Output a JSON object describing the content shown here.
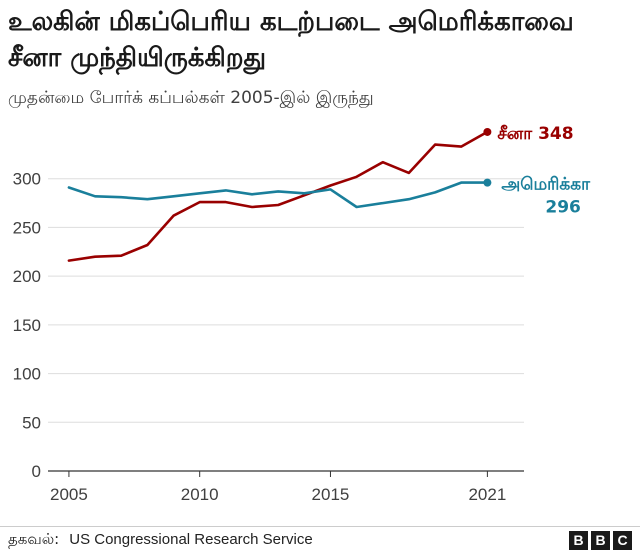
{
  "header": {
    "title": "உலகின் மிகப்பெரிய கடற்படை அமெரிக்காவை சீனா முந்தியிருக்கிறது",
    "subtitle": "முதன்மை போர்க் கப்பல்கள் 2005-இல் இருந்து"
  },
  "footer": {
    "source_label": "தகவல்:",
    "source_name": "US Congressional Research Service",
    "logo_letters": [
      "B",
      "B",
      "C"
    ]
  },
  "chart_data": {
    "type": "line",
    "x": [
      2005,
      2006,
      2007,
      2008,
      2009,
      2010,
      2011,
      2012,
      2013,
      2014,
      2015,
      2016,
      2017,
      2018,
      2019,
      2020,
      2021
    ],
    "xticks": [
      2005,
      2010,
      2015,
      2021
    ],
    "yticks": [
      0,
      50,
      100,
      150,
      200,
      250,
      300
    ],
    "ylim": [
      0,
      350
    ],
    "xlim": [
      2004.2,
      2022.4
    ],
    "grid": true,
    "series": [
      {
        "name": "சீனா",
        "end_value_label": "348",
        "color": "#990000",
        "values": [
          216,
          220,
          221,
          232,
          262,
          276,
          276,
          271,
          273,
          283,
          293,
          302,
          317,
          306,
          335,
          333,
          348
        ]
      },
      {
        "name": "அமெரிக்கா",
        "end_value_label": "296",
        "color": "#1a7f9b",
        "values": [
          291,
          282,
          281,
          279,
          282,
          285,
          288,
          284,
          287,
          285,
          289,
          271,
          275,
          279,
          286,
          296,
          296
        ]
      }
    ]
  }
}
